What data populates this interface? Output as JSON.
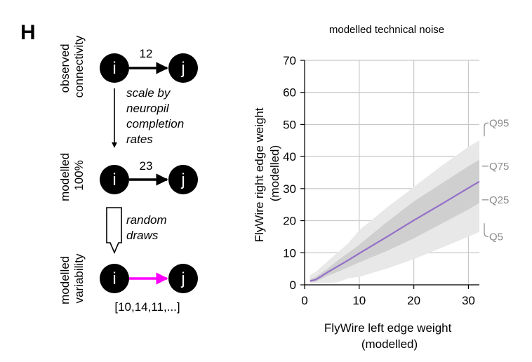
{
  "panel_label": "H",
  "diagram": {
    "rows": [
      {
        "label_lines": [
          "observed",
          "connectivity"
        ],
        "weight_text": "12",
        "arrow_color": "#000000"
      },
      {
        "label_lines": [
          "modelled",
          "100%"
        ],
        "weight_text": "23",
        "arrow_color": "#000000"
      },
      {
        "label_lines": [
          "modelled",
          "variability"
        ],
        "weight_text": "[10,14,11,...]",
        "arrow_color": "#ff00ff"
      }
    ],
    "source_node": "i",
    "target_node": "j",
    "step1_lines": [
      "scale by",
      "neuropil",
      "completion",
      "rates"
    ],
    "step2_lines": [
      "random",
      "draws"
    ]
  },
  "chart_data": {
    "type": "area",
    "title": "modelled technical noise",
    "xlabel_lines": [
      "FlyWire left edge weight",
      "(modelled)"
    ],
    "ylabel_lines": [
      "FlyWire right edge weight",
      "(modelled)"
    ],
    "xlim": [
      0,
      32
    ],
    "ylim": [
      0,
      70
    ],
    "x_ticks": [
      0,
      10,
      20,
      30
    ],
    "y_ticks": [
      0,
      10,
      20,
      30,
      40,
      50,
      60,
      70
    ],
    "grid": true,
    "x": [
      1,
      2,
      3,
      4,
      6,
      8,
      10,
      15,
      20,
      25,
      30,
      32
    ],
    "median": [
      1.2,
      1.6,
      2.6,
      3.7,
      5.7,
      7.7,
      9.8,
      14.9,
      20.1,
      25.1,
      30.2,
      32.2
    ],
    "bands": [
      {
        "name": "Q5-Q95",
        "color": "#e8e8e8",
        "lower": [
          0.3,
          0.5,
          0.5,
          0.5,
          0.8,
          2.0,
          2.5,
          5.0,
          8.0,
          11.5,
          15.0,
          16.5
        ],
        "upper": [
          3.0,
          4.0,
          5.5,
          7.0,
          10.0,
          13.0,
          17.0,
          24.0,
          30.5,
          37.0,
          43.0,
          45.0
        ]
      },
      {
        "name": "Q25-Q75",
        "color": "#cfcfcf",
        "lower": [
          0.8,
          1.0,
          1.8,
          2.7,
          4.0,
          5.5,
          7.0,
          10.5,
          14.5,
          19.0,
          23.5,
          25.5
        ],
        "upper": [
          1.8,
          2.4,
          3.6,
          4.8,
          7.5,
          10.0,
          12.5,
          19.5,
          26.0,
          31.5,
          37.0,
          39.0
        ]
      }
    ],
    "median_color": "#9370c8",
    "quantile_labels": [
      {
        "text": "Q95",
        "y": 48.5
      },
      {
        "text": "Q75",
        "y": 37.0
      },
      {
        "text": "Q25",
        "y": 26.5
      },
      {
        "text": "Q5",
        "y": 17.0
      }
    ]
  }
}
